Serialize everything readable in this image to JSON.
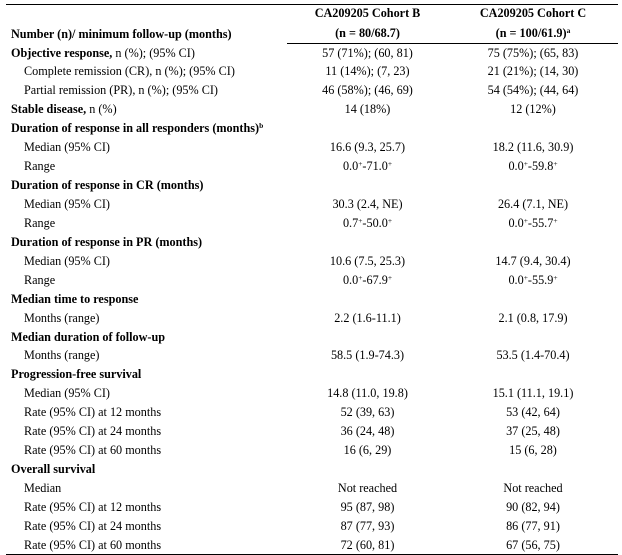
{
  "header": {
    "row_label": "Number (n)/ minimum follow-up (months)",
    "col_b_title": "CA209205 Cohort B",
    "col_b_sub": "(n = 80/68.7)",
    "col_c_title": "CA209205 Cohort C",
    "col_c_sub": "(n = 100/61.9)",
    "col_c_sup": "a"
  },
  "rows": [
    {
      "label": "Objective response,",
      "label_rest": " n (%); (95% CI)",
      "type": "sect",
      "b": "57 (71%); (60, 81)",
      "c": "75 (75%); (65, 83)"
    },
    {
      "label": "Complete remission (CR), n (%); (95% CI)",
      "type": "sub",
      "b": "11 (14%); (7, 23)",
      "c": "21 (21%); (14, 30)"
    },
    {
      "label": "Partial remission (PR), n (%); (95% CI)",
      "type": "sub",
      "b": "46 (58%); (46, 69)",
      "c": "54 (54%); (44, 64)"
    },
    {
      "label": "Stable disease,",
      "label_rest": " n (%)",
      "type": "sect",
      "b": "14 (18%)",
      "c": "12 (12%)"
    },
    {
      "label": "Duration of response in all responders (months)",
      "sup": "b",
      "type": "sect",
      "b": "",
      "c": ""
    },
    {
      "label": "Median (95% CI)",
      "type": "sub",
      "b": "16.6 (9.3, 25.7)",
      "c": "18.2 (11.6, 30.9)"
    },
    {
      "label": "Range",
      "type": "sub",
      "b": "0.0+-71.0+",
      "c": "0.0+-59.8+"
    },
    {
      "label": "Duration of response in CR (months)",
      "type": "sect",
      "b": "",
      "c": ""
    },
    {
      "label": "Median (95% CI)",
      "type": "sub",
      "b": "30.3 (2.4, NE)",
      "c": "26.4 (7.1, NE)"
    },
    {
      "label": "Range",
      "type": "sub",
      "b": "0.7+-50.0+",
      "c": "0.0+-55.7+"
    },
    {
      "label": "Duration of response in PR (months)",
      "type": "sect",
      "b": "",
      "c": ""
    },
    {
      "label": "Median (95% CI)",
      "type": "sub",
      "b": "10.6 (7.5, 25.3)",
      "c": "14.7 (9.4, 30.4)"
    },
    {
      "label": "Range",
      "type": "sub",
      "b": "0.0+-67.9+",
      "c": "0.0+-55.9+"
    },
    {
      "label": "Median time to response",
      "type": "sect",
      "b": "",
      "c": ""
    },
    {
      "label": "Months (range)",
      "type": "sub",
      "b": "2.2 (1.6-11.1)",
      "c": "2.1 (0.8, 17.9)"
    },
    {
      "label": "Median duration of follow-up",
      "type": "sect",
      "b": "",
      "c": ""
    },
    {
      "label": "Months (range)",
      "type": "sub",
      "b": "58.5 (1.9-74.3)",
      "c": "53.5 (1.4-70.4)"
    },
    {
      "label": "Progression-free survival",
      "type": "sect",
      "b": "",
      "c": ""
    },
    {
      "label": "Median (95% CI)",
      "type": "sub",
      "b": "14.8 (11.0, 19.8)",
      "c": "15.1 (11.1, 19.1)"
    },
    {
      "label": "Rate (95% CI) at 12 months",
      "type": "sub",
      "b": "52 (39, 63)",
      "c": "53 (42, 64)"
    },
    {
      "label": "Rate (95% CI) at 24 months",
      "type": "sub",
      "b": "36 (24, 48)",
      "c": "37 (25, 48)"
    },
    {
      "label": "Rate (95% CI) at 60 months",
      "type": "sub",
      "b": "16 (6, 29)",
      "c": "15 (6, 28)"
    },
    {
      "label": "Overall survival",
      "type": "sect",
      "b": "",
      "c": ""
    },
    {
      "label": "Median",
      "type": "sub",
      "b": "Not reached",
      "c": "Not reached"
    },
    {
      "label": "Rate (95% CI) at 12 months",
      "type": "sub",
      "b": "95 (87, 98)",
      "c": "90 (82, 94)"
    },
    {
      "label": "Rate (95% CI) at 24 months",
      "type": "sub",
      "b": "87 (77, 93)",
      "c": "86 (77, 91)"
    },
    {
      "label": "Rate (95% CI) at 60 months",
      "type": "sub",
      "b": "72 (60, 81)",
      "c": "67 (56, 75)"
    }
  ]
}
